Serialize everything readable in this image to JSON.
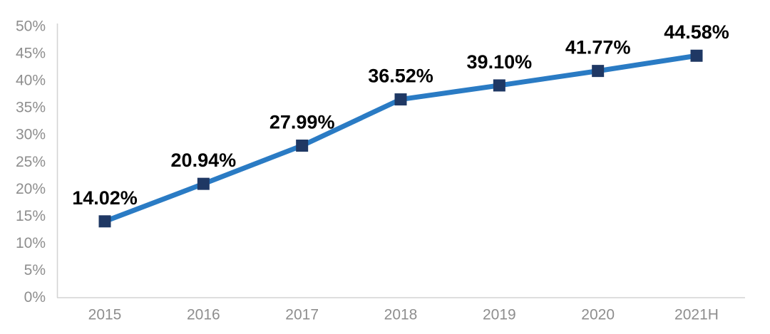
{
  "chart_data": {
    "type": "line",
    "title": "",
    "xlabel": "",
    "ylabel": "",
    "categories": [
      "2015",
      "2016",
      "2017",
      "2018",
      "2019",
      "2020",
      "2021H"
    ],
    "series": [
      {
        "name": "value",
        "values": [
          14.02,
          20.94,
          27.99,
          36.52,
          39.1,
          41.77,
          44.58
        ],
        "point_labels": [
          "14.02%",
          "20.94%",
          "27.99%",
          "36.52%",
          "39.10%",
          "41.77%",
          "44.58%"
        ]
      }
    ],
    "ylim": [
      0,
      50
    ],
    "ytick_step": 5,
    "ytick_labels": [
      "0%",
      "5%",
      "10%",
      "15%",
      "20%",
      "25%",
      "30%",
      "35%",
      "40%",
      "45%",
      "50%"
    ],
    "grid": false,
    "legend": "none",
    "marker_shape": "square",
    "colors": {
      "line": "#2A7BC4",
      "marker": "#1F3864",
      "axis_line": "#D4D4D4",
      "tick_text": "#8E8E8E",
      "data_label_text": "#000000",
      "background": "#FFFFFF"
    }
  }
}
